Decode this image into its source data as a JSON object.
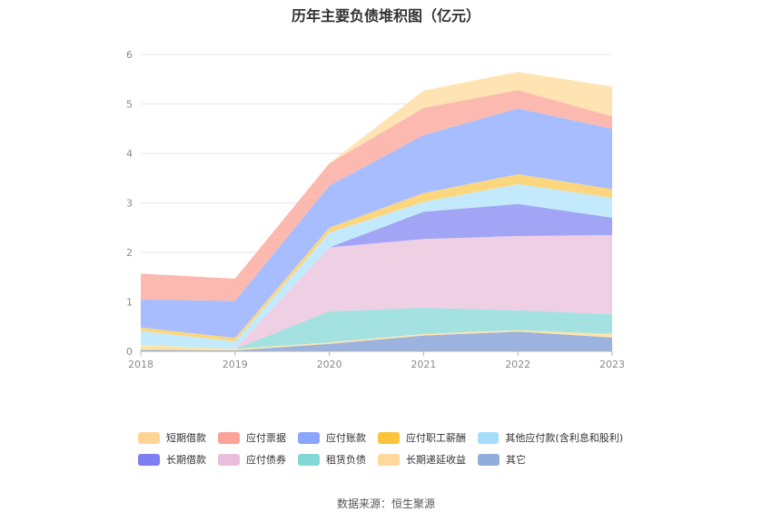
{
  "chart_data": {
    "type": "area",
    "stacked": true,
    "title": "历年主要负债堆积图（亿元）",
    "categories": [
      "2018",
      "2019",
      "2020",
      "2021",
      "2022",
      "2023"
    ],
    "ylim": [
      0,
      6
    ],
    "yticks": [
      0,
      1,
      2,
      3,
      4,
      5,
      6
    ],
    "grid": true,
    "legend_position": "bottom",
    "series": [
      {
        "name": "其它",
        "color": "#9bb3de",
        "values": [
          0.03,
          0.02,
          0.15,
          0.32,
          0.4,
          0.28
        ]
      },
      {
        "name": "长期递延收益",
        "color": "#ffe4a8",
        "values": [
          0.1,
          0.03,
          0.03,
          0.03,
          0.03,
          0.07
        ]
      },
      {
        "name": "租赁负债",
        "color": "#a4e2e2",
        "values": [
          0.0,
          0.0,
          0.63,
          0.53,
          0.4,
          0.4
        ]
      },
      {
        "name": "应付债券",
        "color": "#eecfe4",
        "values": [
          0.0,
          0.0,
          1.29,
          1.39,
          1.5,
          1.6
        ]
      },
      {
        "name": "长期借款",
        "color": "#a2a4f5",
        "values": [
          0.0,
          0.0,
          0.0,
          0.55,
          0.65,
          0.35
        ]
      },
      {
        "name": "其他应付款(含利息和股利)",
        "color": "#c2eafc",
        "values": [
          0.28,
          0.15,
          0.3,
          0.2,
          0.4,
          0.4
        ]
      },
      {
        "name": "应付职工薪酬",
        "color": "#fcd67e",
        "values": [
          0.07,
          0.07,
          0.1,
          0.18,
          0.2,
          0.18
        ]
      },
      {
        "name": "应付账款",
        "color": "#a8bdfd",
        "values": [
          0.57,
          0.75,
          0.85,
          1.17,
          1.33,
          1.22
        ]
      },
      {
        "name": "应付票据",
        "color": "#fcb9b0",
        "values": [
          0.52,
          0.45,
          0.45,
          0.55,
          0.37,
          0.25
        ]
      },
      {
        "name": "短期借款",
        "color": "#ffe3b2",
        "values": [
          0.0,
          0.0,
          0.0,
          0.35,
          0.37,
          0.6
        ]
      }
    ]
  },
  "legend": {
    "items": [
      {
        "name": "短期借款",
        "color": "#ffd595"
      },
      {
        "name": "应付票据",
        "color": "#fca39a"
      },
      {
        "name": "应付账款",
        "color": "#8aa6fb"
      },
      {
        "name": "应付职工薪酬",
        "color": "#fbc43c"
      },
      {
        "name": "其他应付款(含利息和股利)",
        "color": "#a5ddfb"
      },
      {
        "name": "长期借款",
        "color": "#7d7ff2"
      },
      {
        "name": "应付债券",
        "color": "#e9bddd"
      },
      {
        "name": "租赁负债",
        "color": "#83d7d6"
      },
      {
        "name": "长期递延收益",
        "color": "#ffd89b"
      },
      {
        "name": "其它",
        "color": "#91aedb"
      }
    ]
  },
  "source": "数据来源：恒生聚源"
}
